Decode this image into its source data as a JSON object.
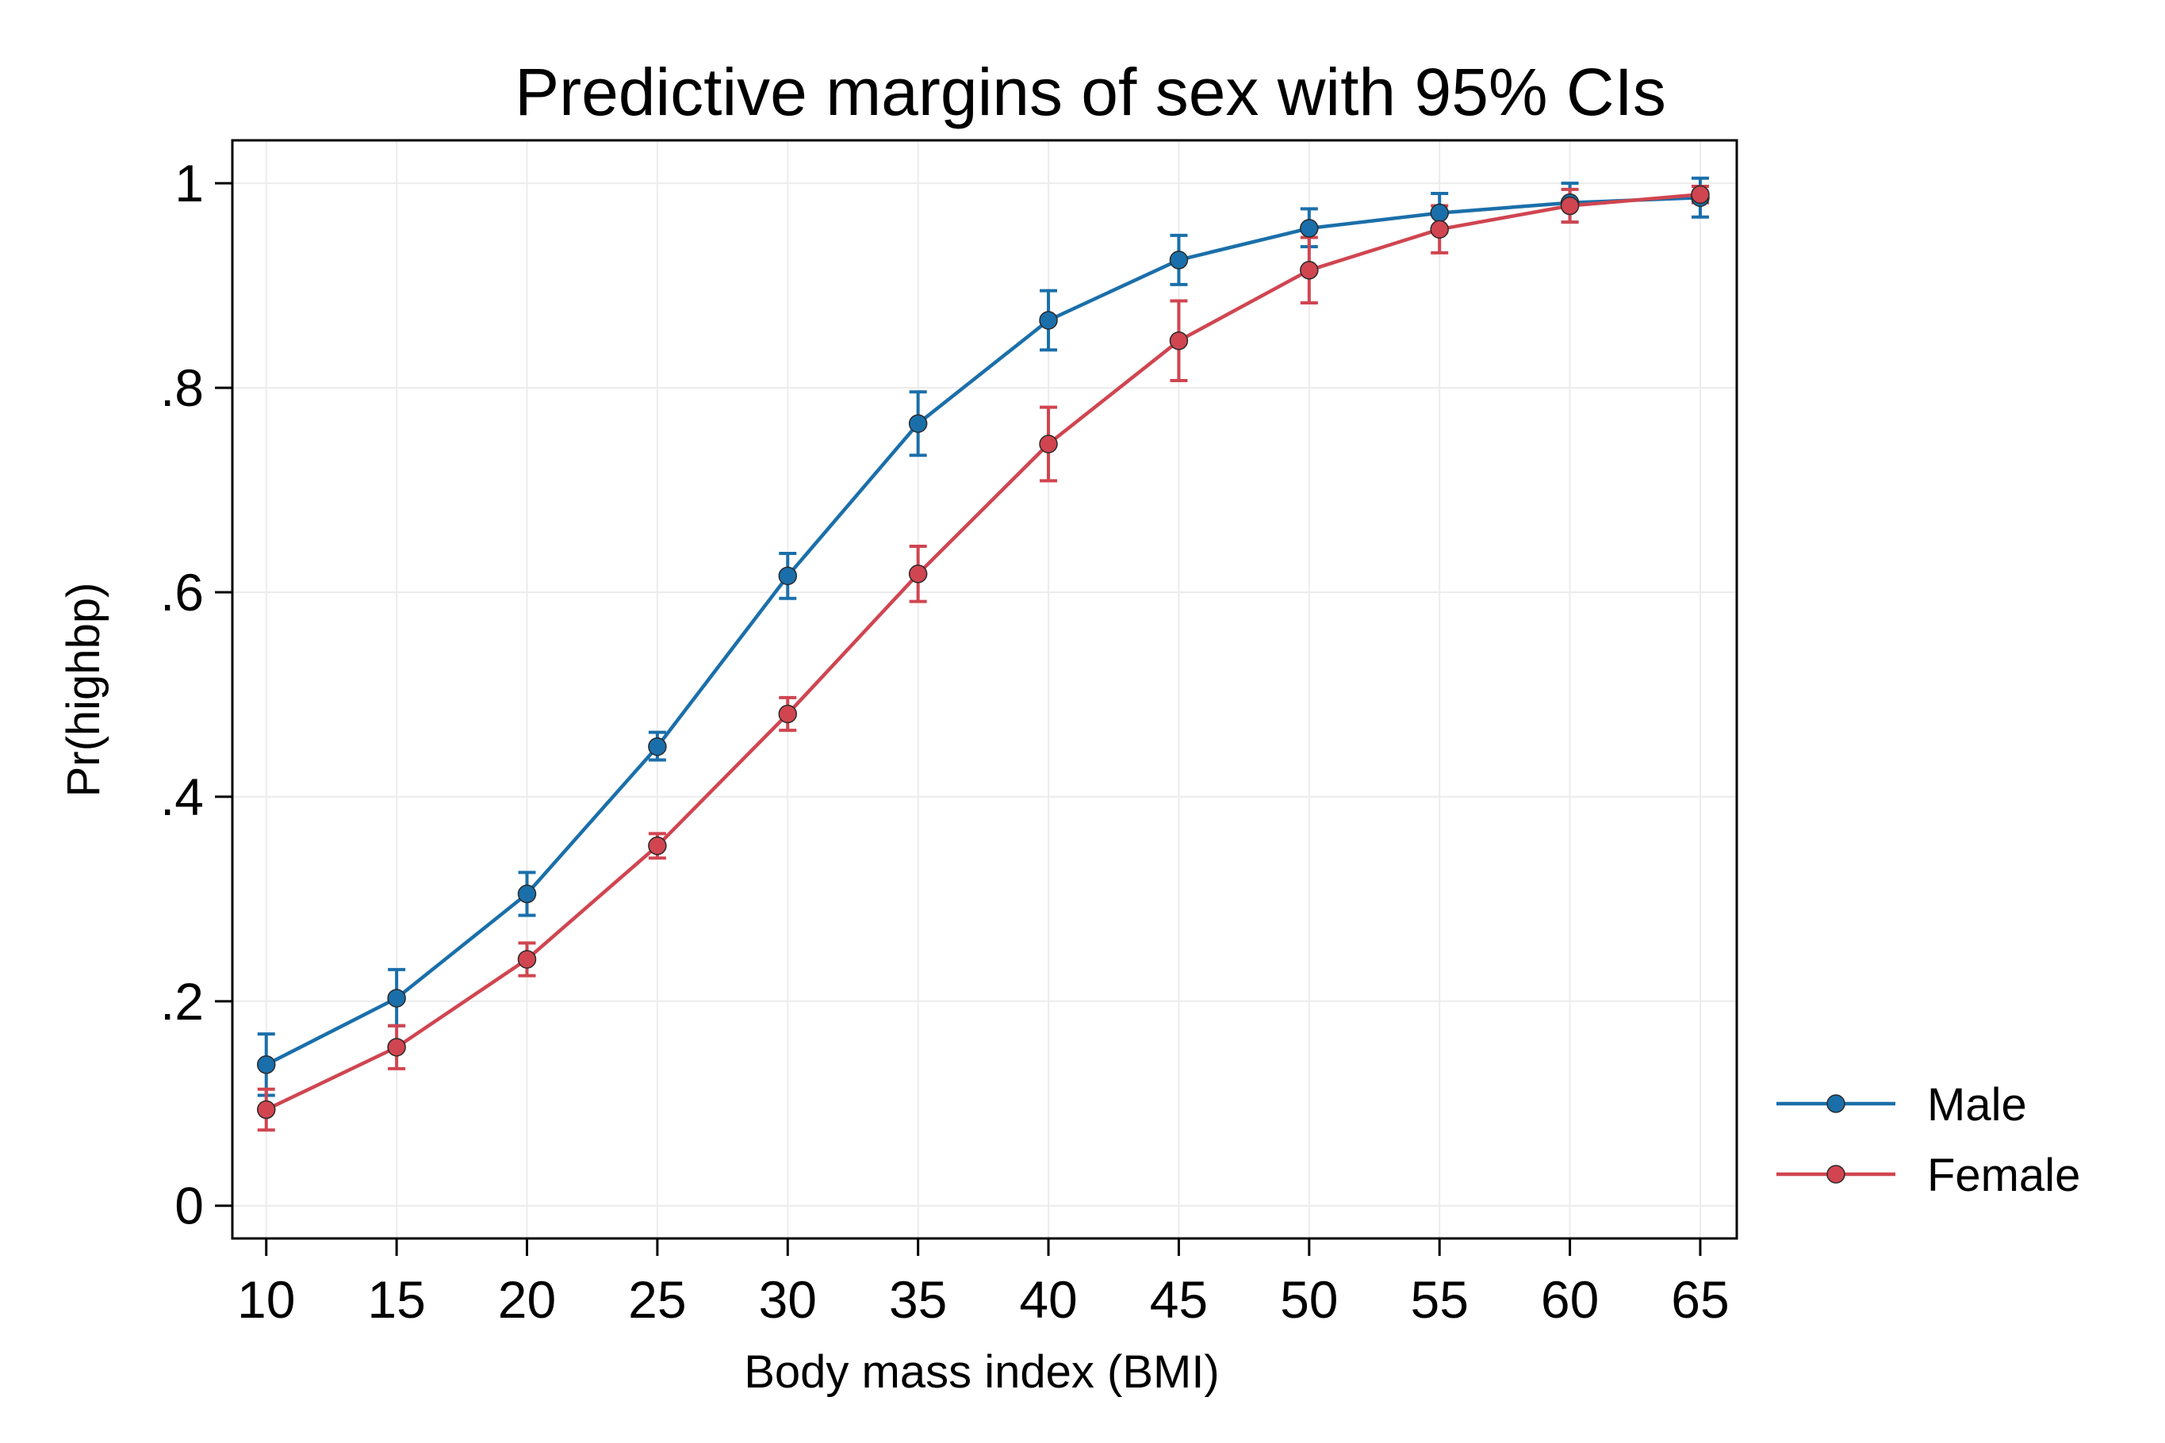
{
  "chart_data": {
    "type": "line",
    "title": "Predictive margins of sex with 95% CIs",
    "xlabel": "Body mass index (BMI)",
    "ylabel": "Pr(highbp)",
    "x": [
      10,
      15,
      20,
      25,
      30,
      35,
      40,
      45,
      50,
      55,
      60,
      65
    ],
    "xticks": [
      "10",
      "15",
      "20",
      "25",
      "30",
      "35",
      "40",
      "45",
      "50",
      "55",
      "60",
      "65"
    ],
    "yticks": [
      {
        "value": 0,
        "label": "0"
      },
      {
        "value": 0.2,
        "label": ".2"
      },
      {
        "value": 0.4,
        "label": ".4"
      },
      {
        "value": 0.6,
        "label": ".6"
      },
      {
        "value": 0.8,
        "label": ".8"
      },
      {
        "value": 1,
        "label": "1"
      }
    ],
    "xlim": [
      8.7,
      66.4
    ],
    "ylim": [
      -0.032,
      1.042
    ],
    "grid": true,
    "legend_position": "right",
    "series": [
      {
        "name": "Male",
        "color": "#1a6faa",
        "values": [
          0.138,
          0.203,
          0.305,
          0.449,
          0.616,
          0.765,
          0.866,
          0.925,
          0.956,
          0.971,
          0.981,
          0.986
        ],
        "ci_low": [
          0.108,
          0.176,
          0.284,
          0.436,
          0.594,
          0.734,
          0.837,
          0.901,
          0.938,
          0.953,
          0.962,
          0.967
        ],
        "ci_high": [
          0.168,
          0.231,
          0.326,
          0.463,
          0.638,
          0.796,
          0.895,
          0.949,
          0.975,
          0.99,
          1.0,
          1.005
        ]
      },
      {
        "name": "Female",
        "color": "#d04550",
        "values": [
          0.094,
          0.155,
          0.241,
          0.352,
          0.481,
          0.618,
          0.745,
          0.846,
          0.915,
          0.955,
          0.978,
          0.989
        ],
        "ci_low": [
          0.074,
          0.134,
          0.225,
          0.34,
          0.465,
          0.591,
          0.709,
          0.807,
          0.883,
          0.932,
          0.962,
          0.981
        ],
        "ci_high": [
          0.114,
          0.176,
          0.257,
          0.364,
          0.497,
          0.645,
          0.781,
          0.885,
          0.947,
          0.978,
          0.994,
          0.997
        ]
      }
    ]
  }
}
